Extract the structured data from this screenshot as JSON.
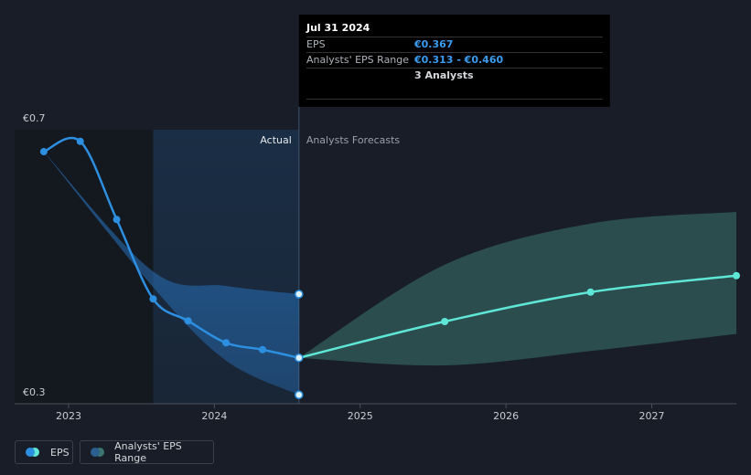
{
  "chart_data": {
    "type": "line",
    "annotations": {
      "actual": "Actual",
      "forecast": "Analysts Forecasts"
    },
    "xlim": [
      2022.63,
      2027.58
    ],
    "xticks": [
      2023,
      2024,
      2025,
      2026,
      2027
    ],
    "ylim": [
      0.3,
      0.7
    ],
    "yticks": [
      {
        "value": 0.3,
        "label": "€0.3"
      },
      {
        "value": 0.4,
        "label": null
      },
      {
        "value": 0.5,
        "label": null
      },
      {
        "value": 0.6,
        "label": null
      },
      {
        "value": 0.7,
        "label": "€0.7"
      }
    ],
    "grid": true,
    "shade_start": 2023.58,
    "actual_end": 2024.58,
    "eps": {
      "name": "EPS",
      "color": "#2d8fe0",
      "forecast_color": "#5ee6d6",
      "x": [
        2022.83,
        2023.08,
        2023.33,
        2023.58,
        2023.82,
        2024.08,
        2024.33,
        2024.58
      ],
      "values": [
        0.668,
        0.683,
        0.569,
        0.453,
        0.421,
        0.389,
        0.379,
        0.367
      ],
      "forecast_x": [
        2024.58,
        2025.58,
        2026.58,
        2027.58
      ],
      "forecast_values": [
        0.367,
        0.42,
        0.463,
        0.487
      ]
    },
    "range": {
      "name": "Analysts' EPS Range",
      "color": "#2a7fd4",
      "forecast_color": "#3c7470",
      "x": [
        2022.83,
        2023.58,
        2024.08,
        2024.58
      ],
      "high": [
        0.668,
        0.493,
        0.472,
        0.46
      ],
      "low": [
        0.668,
        0.47,
        0.363,
        0.313
      ],
      "forecast_x": [
        2024.58,
        2025.58,
        2026.58,
        2027.58
      ],
      "forecast_high": [
        0.367,
        0.503,
        0.563,
        0.58
      ],
      "forecast_low": [
        0.367,
        0.356,
        0.377,
        0.402
      ]
    },
    "tooltip": {
      "date": "Jul 31 2024",
      "rows": [
        {
          "label": "EPS",
          "value": "€0.367"
        },
        {
          "label": "Analysts' EPS Range",
          "value": "€0.313 - €0.460"
        }
      ],
      "note": "3 Analysts"
    }
  }
}
